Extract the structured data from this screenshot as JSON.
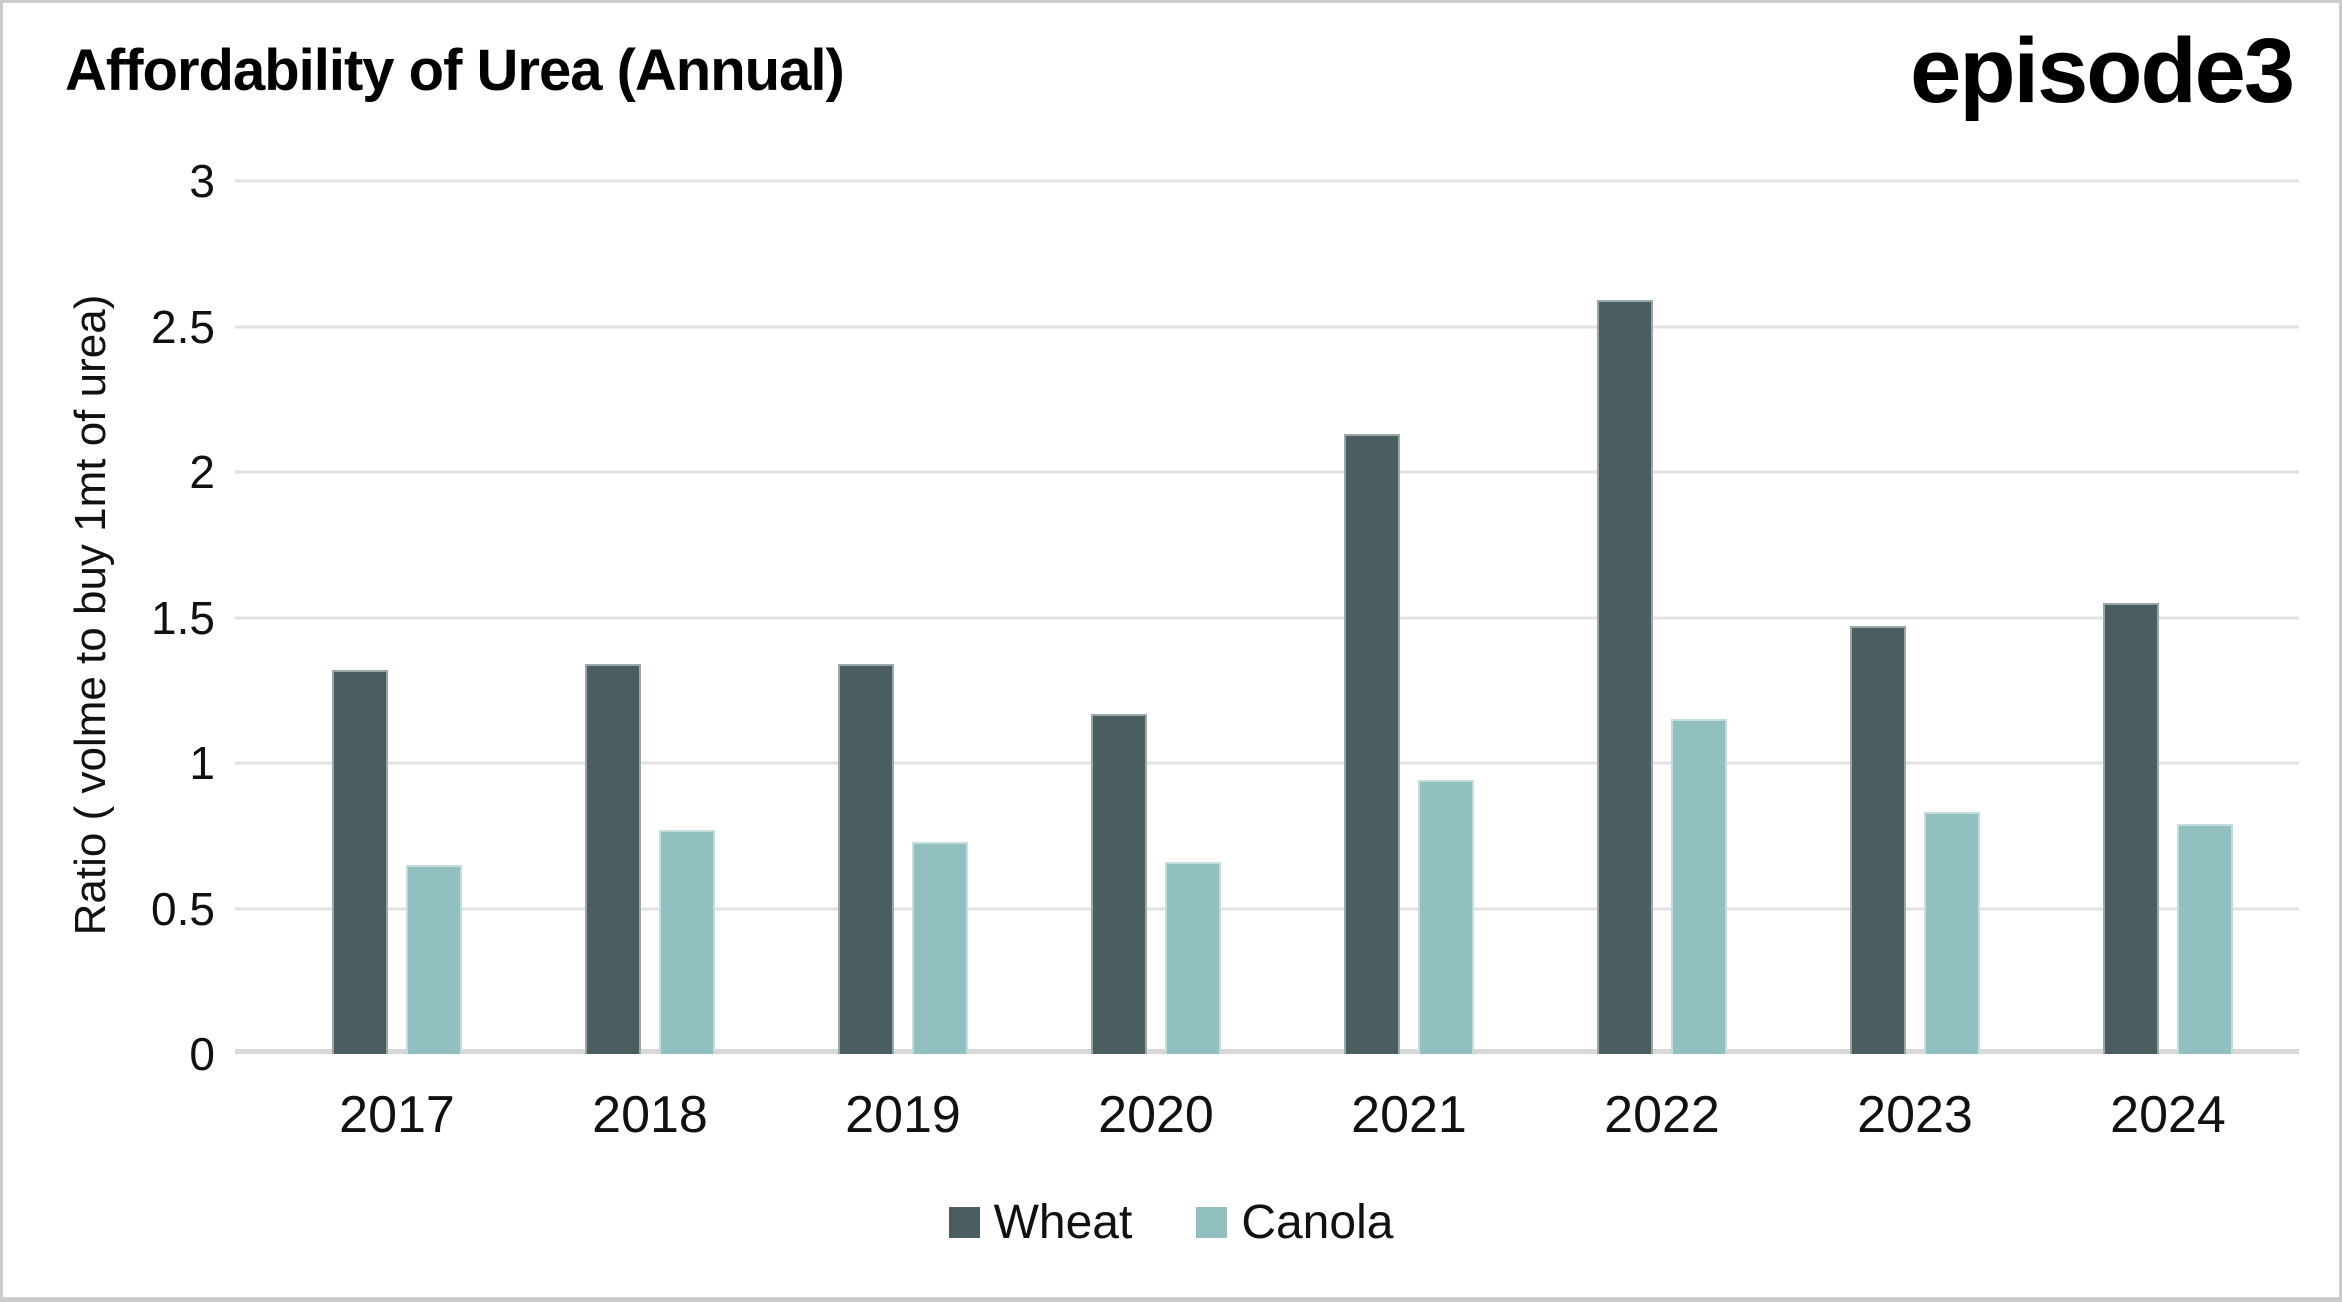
{
  "header": {
    "title": "Affordability of Urea (Annual)",
    "logo_text": "episode3"
  },
  "y_axis": {
    "label": "Ratio ( volme to buy 1mt of urea)",
    "ticks": [
      0,
      0.5,
      1,
      1.5,
      2,
      2.5,
      3
    ],
    "max": 3
  },
  "colors": {
    "wheat": "#4a5d60",
    "canola": "#92c0c1",
    "gridline": "#e2e2e2",
    "baseline": "#d8d8d8",
    "border": "#cccccc",
    "text": "#000000"
  },
  "legend": {
    "items": [
      "Wheat",
      "Canola"
    ]
  },
  "chart_data": {
    "type": "bar",
    "title": "Affordability of Urea (Annual)",
    "categories": [
      "2017",
      "2018",
      "2019",
      "2020",
      "2021",
      "2022",
      "2023",
      "2024"
    ],
    "series": [
      {
        "name": "Wheat",
        "color": "#4a5d60",
        "values": [
          1.32,
          1.34,
          1.34,
          1.17,
          2.13,
          2.59,
          1.47,
          1.55
        ]
      },
      {
        "name": "Canola",
        "color": "#92c0c1",
        "values": [
          0.65,
          0.77,
          0.73,
          0.66,
          0.94,
          1.15,
          0.83,
          0.79
        ]
      }
    ],
    "xlabel": "",
    "ylabel": "Ratio ( volme to buy 1mt of urea)",
    "ylim": [
      0,
      3
    ],
    "grid": true,
    "legend_position": "bottom"
  }
}
